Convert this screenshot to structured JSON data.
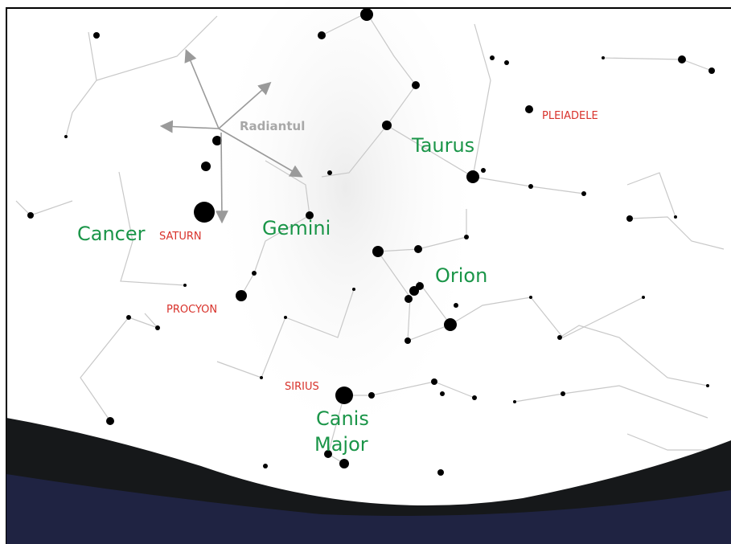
{
  "radiant": "Radiantul",
  "objects": {
    "pleiades": "PLEIADELE",
    "saturn": "SATURN",
    "procyon": "PROCYON",
    "sirius": "SIRIUS"
  },
  "constellations": {
    "taurus": "Taurus",
    "cancer": "Cancer",
    "gemini": "Gemini",
    "orion": "Orion",
    "canis_major": [
      "Canis",
      "Major"
    ]
  }
}
